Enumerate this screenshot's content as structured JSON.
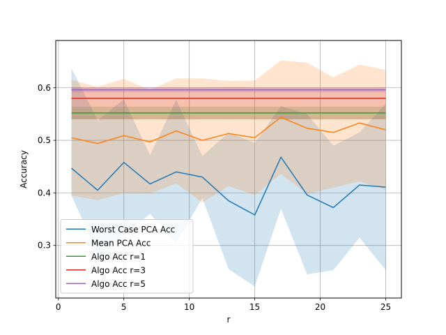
{
  "chart_data": {
    "type": "line",
    "xlabel": "r",
    "ylabel": "Accuracy",
    "xlim": [
      -0.2,
      26.2
    ],
    "ylim": [
      0.2,
      0.69
    ],
    "xticks": [
      0,
      5,
      10,
      15,
      20,
      25
    ],
    "yticks": [
      0.3,
      0.4,
      0.5,
      0.6
    ],
    "grid": true,
    "legend_position": "lower-left",
    "x": [
      1,
      3,
      5,
      7,
      9,
      11,
      13,
      15,
      17,
      19,
      21,
      23,
      25
    ],
    "series": [
      {
        "name": "Worst Case PCA Acc",
        "color": "#1f77b4",
        "values": [
          0.447,
          0.405,
          0.458,
          0.417,
          0.44,
          0.43,
          0.385,
          0.358,
          0.468,
          0.396,
          0.372,
          0.415,
          0.411
        ],
        "band_lower": [
          0.395,
          0.285,
          0.32,
          0.36,
          0.305,
          0.39,
          0.255,
          0.222,
          0.37,
          0.245,
          0.253,
          0.315,
          0.253
        ],
        "band_upper": [
          0.637,
          0.538,
          0.578,
          0.472,
          0.577,
          0.47,
          0.515,
          0.495,
          0.565,
          0.55,
          0.49,
          0.515,
          0.57
        ]
      },
      {
        "name": "Mean PCA Acc",
        "color": "#ff7f0e",
        "values": [
          0.505,
          0.494,
          0.509,
          0.497,
          0.518,
          0.5,
          0.513,
          0.505,
          0.544,
          0.523,
          0.515,
          0.533,
          0.52
        ],
        "band_lower": [
          0.395,
          0.386,
          0.4,
          0.399,
          0.418,
          0.382,
          0.413,
          0.396,
          0.436,
          0.398,
          0.41,
          0.422,
          0.406
        ],
        "band_upper": [
          0.615,
          0.602,
          0.617,
          0.596,
          0.618,
          0.618,
          0.613,
          0.614,
          0.652,
          0.648,
          0.62,
          0.644,
          0.634
        ]
      },
      {
        "name": "Algo Acc r=1",
        "color": "#2ca02c",
        "values": [
          0.552,
          0.552,
          0.552,
          0.552,
          0.552,
          0.552,
          0.552,
          0.552,
          0.552,
          0.552,
          0.552,
          0.552,
          0.552
        ],
        "band_lower": [
          0.54,
          0.54,
          0.54,
          0.54,
          0.54,
          0.54,
          0.54,
          0.54,
          0.54,
          0.54,
          0.54,
          0.54,
          0.54
        ],
        "band_upper": [
          0.564,
          0.564,
          0.564,
          0.564,
          0.564,
          0.564,
          0.564,
          0.564,
          0.564,
          0.564,
          0.564,
          0.564,
          0.564
        ]
      },
      {
        "name": "Algo Acc r=3",
        "color": "#d62728",
        "values": [
          0.58,
          0.58,
          0.58,
          0.58,
          0.58,
          0.58,
          0.58,
          0.58,
          0.58,
          0.58,
          0.58,
          0.58,
          0.58
        ],
        "band_lower": [
          0.54,
          0.54,
          0.54,
          0.54,
          0.54,
          0.54,
          0.54,
          0.54,
          0.54,
          0.54,
          0.54,
          0.54,
          0.54
        ],
        "band_upper": [
          0.6,
          0.6,
          0.6,
          0.6,
          0.6,
          0.6,
          0.6,
          0.6,
          0.6,
          0.6,
          0.6,
          0.6,
          0.6
        ]
      },
      {
        "name": "Algo Acc r=5",
        "color": "#9467bd",
        "values": [
          0.596,
          0.596,
          0.596,
          0.596,
          0.596,
          0.596,
          0.596,
          0.596,
          0.596,
          0.596,
          0.596,
          0.596,
          0.596
        ],
        "band_lower": [
          0.591,
          0.591,
          0.591,
          0.591,
          0.591,
          0.591,
          0.591,
          0.591,
          0.591,
          0.591,
          0.591,
          0.591,
          0.591
        ],
        "band_upper": [
          0.601,
          0.601,
          0.601,
          0.601,
          0.601,
          0.601,
          0.601,
          0.601,
          0.601,
          0.601,
          0.601,
          0.601,
          0.601
        ]
      }
    ]
  }
}
